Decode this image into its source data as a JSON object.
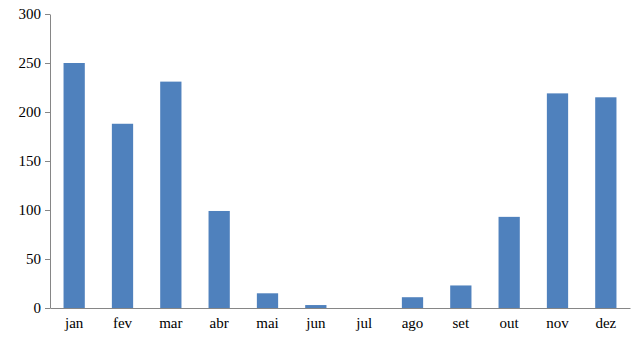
{
  "chart_data": {
    "type": "bar",
    "categories": [
      "jan",
      "fev",
      "mar",
      "abr",
      "mai",
      "jun",
      "jul",
      "ago",
      "set",
      "out",
      "nov",
      "dez"
    ],
    "values": [
      250,
      188,
      231,
      99,
      15,
      3,
      0,
      11,
      23,
      93,
      219,
      215
    ],
    "color": "#4f81bd",
    "ylim": [
      0,
      300
    ],
    "yticks": [
      0,
      50,
      100,
      150,
      200,
      250,
      300
    ],
    "grid": false
  }
}
